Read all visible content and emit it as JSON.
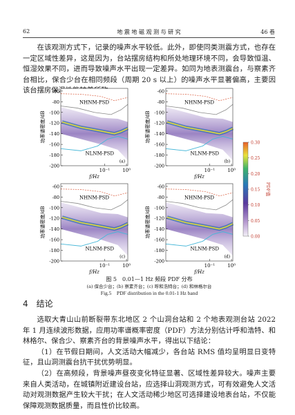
{
  "header": {
    "page": "62",
    "journal": "地 震 地 磁 观 测 与 研 究",
    "volume": "46 卷"
  },
  "intro": "在该观测方式下，记录的噪声水平较低。此外，即使同类测震方式，也存在一定区域性差异，这是因为，台站摆房结构和所处地理环境不同，会导致恒温、恒湿效果不同，进而导致噪声水平出现一定差异。如同为地表测震台，与察素齐台相比，保合少台在相同频段（周期 20 s 以上）的噪声水平显著偏高，主要因该台摆房保温性能较差所致。",
  "figure": {
    "panels": [
      {
        "label": "(a)"
      },
      {
        "label": "(b)"
      },
      {
        "label": "(c)"
      },
      {
        "label": "(d)"
      }
    ],
    "nhnm": "NHNM-PSD",
    "nlnm": "NLNM-PSD",
    "y_label": "功率谱密度/dB",
    "x_label": "f/Hz",
    "ylim": [
      -200,
      -55
    ],
    "yticks": [
      -60,
      -80,
      -100,
      -120,
      -140,
      -160,
      -180,
      -200
    ],
    "xlim": [
      0.001,
      1.15
    ],
    "xticks": [
      {
        "value": 0.1,
        "label": "10⁻¹"
      },
      {
        "value": 1,
        "label": "10⁰"
      }
    ],
    "colorbar": {
      "label": "PDF值",
      "lim": [
        0,
        0.3
      ],
      "ticks": [
        {
          "value": 0.3,
          "label": "0.30"
        },
        {
          "value": 0.25,
          "label": "0.25"
        },
        {
          "value": 0.2,
          "label": "0.20"
        },
        {
          "value": 0.15,
          "label": "0.15"
        },
        {
          "value": 0.1,
          "label": "0.10"
        },
        {
          "value": 0.05,
          "label": "0.05"
        },
        {
          "value": 0,
          "label": "0.00"
        }
      ]
    },
    "caption": "图 5　0.01—1 Hz 频段 PDF 分布",
    "caption_sub": "(a) 保合少台；(b) 察素齐台；(c) 呼和浩特台；(d) 和林格尔台",
    "caption_en": "Fig.5　PDF distribution in the 0.01-1 Hz band"
  },
  "section": {
    "heading": "4　结论",
    "paragraphs": [
      "选取大青山山前断裂带东北地区 2 个山洞台站和 2 个地表观测台站 2022 年 1 月连续波形数据，应用功率谱概率密度（PDF）方法分别估计呼和浩特、和林格尔、保合少、察素齐台的背景噪声水平，得出以下结论：",
      "（1）在节假日期间，人文活动大幅减少，各台站 RMS 值均呈明显日变特征，且山洞测震台抗干扰优势明显。",
      "（2）在高频段，背景噪声昼夜变化特征显著、区域性差异较大。噪声主要来自人类活动，在城镇附近建设台站，应选择山洞观测方式，可有效避免人文活动对观测数据产生较大干扰；在人文活动稀少地区可选择建设地表台站，不仅能保障观测数据质量，而且性价比较高。"
    ]
  }
}
